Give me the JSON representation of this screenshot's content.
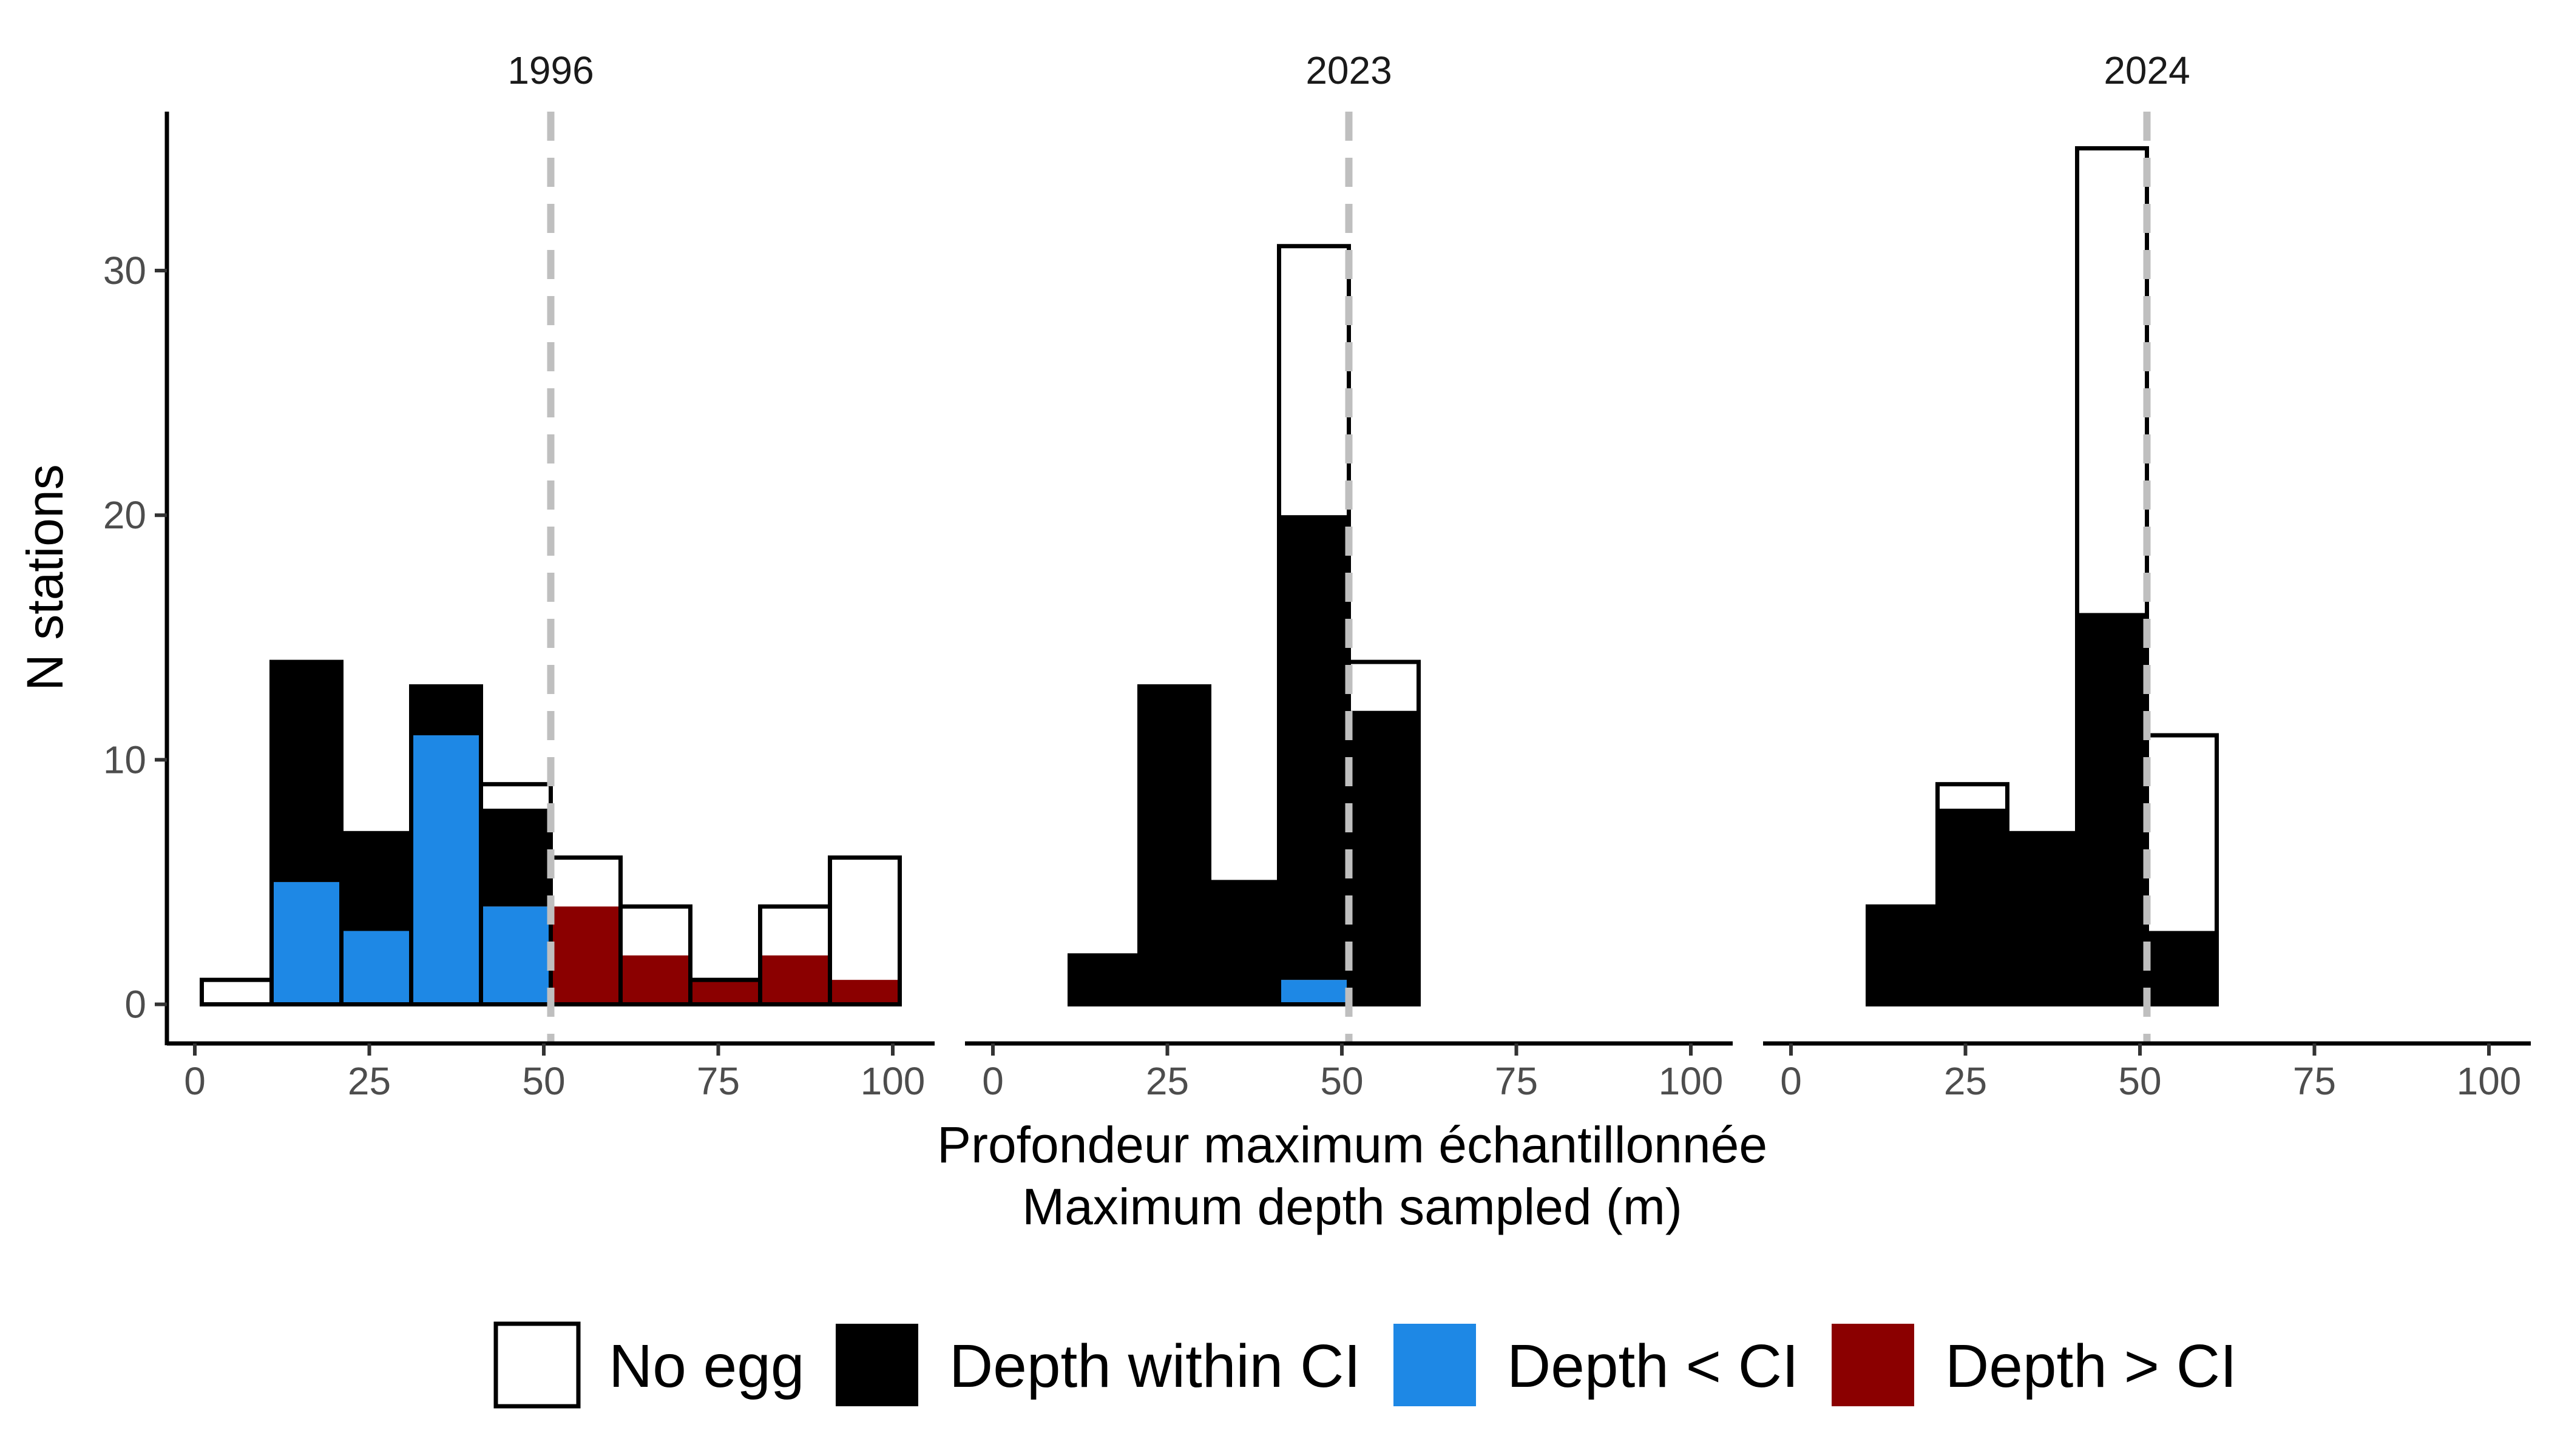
{
  "chart_data": {
    "type": "bar",
    "subtype": "stacked-histogram-facets",
    "ylabel": "N stations",
    "xlabel_line1": "Profondeur maximum échantillonnée",
    "xlabel_line2": "Maximum depth sampled (m)",
    "xlim": [
      -4,
      106
    ],
    "ylim": [
      -1.6,
      36.5
    ],
    "x_ticks": [
      0,
      25,
      50,
      75,
      100
    ],
    "x_tick_labels": [
      "0",
      "25",
      "50",
      "75",
      "100"
    ],
    "y_ticks": [
      0,
      10,
      20,
      30
    ],
    "y_tick_labels": [
      "0",
      "10",
      "20",
      "30"
    ],
    "bin_width": 10,
    "grid": false,
    "legend_position": "bottom",
    "categories": [
      "No egg",
      "Depth within CI",
      "Depth < CI",
      "Depth > CI"
    ],
    "colors": {
      "No egg": "#ffffff",
      "Depth within CI": "#000000",
      "Depth < CI": "#1e88e5",
      "Depth > CI": "#8b0000",
      "outline": "#000000",
      "reference_line": "#bfbfbf",
      "axis": "#000000"
    },
    "panels": [
      {
        "label": "1996",
        "reference_line_x": 51,
        "bins": [
          {
            "x0": 1,
            "x1": 11,
            "total": 1,
            "depth_within_ci": 0,
            "depth_lt_ci": 0,
            "depth_gt_ci": 0
          },
          {
            "x0": 11,
            "x1": 21,
            "total": 14,
            "depth_within_ci": 9,
            "depth_lt_ci": 5,
            "depth_gt_ci": 0
          },
          {
            "x0": 21,
            "x1": 31,
            "total": 7,
            "depth_within_ci": 4,
            "depth_lt_ci": 3,
            "depth_gt_ci": 0
          },
          {
            "x0": 31,
            "x1": 41,
            "total": 13,
            "depth_within_ci": 2,
            "depth_lt_ci": 11,
            "depth_gt_ci": 0
          },
          {
            "x0": 41,
            "x1": 51,
            "total": 9,
            "depth_within_ci": 4,
            "depth_lt_ci": 4,
            "depth_gt_ci": 0
          },
          {
            "x0": 51,
            "x1": 61,
            "total": 6,
            "depth_within_ci": 0,
            "depth_lt_ci": 0,
            "depth_gt_ci": 4
          },
          {
            "x0": 61,
            "x1": 71,
            "total": 4,
            "depth_within_ci": 0,
            "depth_lt_ci": 0,
            "depth_gt_ci": 2
          },
          {
            "x0": 71,
            "x1": 81,
            "total": 1,
            "depth_within_ci": 0,
            "depth_lt_ci": 0,
            "depth_gt_ci": 1
          },
          {
            "x0": 81,
            "x1": 91,
            "total": 4,
            "depth_within_ci": 0,
            "depth_lt_ci": 0,
            "depth_gt_ci": 2
          },
          {
            "x0": 91,
            "x1": 101,
            "total": 6,
            "depth_within_ci": 0,
            "depth_lt_ci": 0,
            "depth_gt_ci": 1
          }
        ]
      },
      {
        "label": "2023",
        "reference_line_x": 51,
        "bins": [
          {
            "x0": 11,
            "x1": 21,
            "total": 2,
            "depth_within_ci": 2,
            "depth_lt_ci": 0,
            "depth_gt_ci": 0
          },
          {
            "x0": 21,
            "x1": 31,
            "total": 13,
            "depth_within_ci": 13,
            "depth_lt_ci": 0,
            "depth_gt_ci": 0
          },
          {
            "x0": 31,
            "x1": 41,
            "total": 5,
            "depth_within_ci": 5,
            "depth_lt_ci": 0,
            "depth_gt_ci": 0
          },
          {
            "x0": 41,
            "x1": 51,
            "total": 31,
            "depth_within_ci": 19,
            "depth_lt_ci": 1,
            "depth_gt_ci": 0
          },
          {
            "x0": 51,
            "x1": 61,
            "total": 14,
            "depth_within_ci": 12,
            "depth_lt_ci": 0,
            "depth_gt_ci": 0
          }
        ]
      },
      {
        "label": "2024",
        "reference_line_x": 51,
        "bins": [
          {
            "x0": 11,
            "x1": 21,
            "total": 4,
            "depth_within_ci": 4,
            "depth_lt_ci": 0,
            "depth_gt_ci": 0
          },
          {
            "x0": 21,
            "x1": 31,
            "total": 9,
            "depth_within_ci": 8,
            "depth_lt_ci": 0,
            "depth_gt_ci": 0
          },
          {
            "x0": 31,
            "x1": 41,
            "total": 7,
            "depth_within_ci": 7,
            "depth_lt_ci": 0,
            "depth_gt_ci": 0
          },
          {
            "x0": 41,
            "x1": 51,
            "total": 35,
            "depth_within_ci": 16,
            "depth_lt_ci": 0,
            "depth_gt_ci": 0
          },
          {
            "x0": 51,
            "x1": 61,
            "total": 11,
            "depth_within_ci": 3,
            "depth_lt_ci": 0,
            "depth_gt_ci": 0
          }
        ]
      }
    ]
  }
}
